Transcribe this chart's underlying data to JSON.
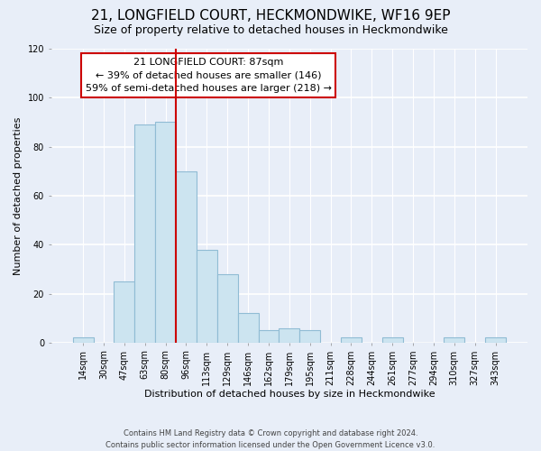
{
  "title": "21, LONGFIELD COURT, HECKMONDWIKE, WF16 9EP",
  "subtitle": "Size of property relative to detached houses in Heckmondwike",
  "xlabel": "Distribution of detached houses by size in Heckmondwike",
  "ylabel": "Number of detached properties",
  "footer_line1": "Contains HM Land Registry data © Crown copyright and database right 2024.",
  "footer_line2": "Contains public sector information licensed under the Open Government Licence v3.0.",
  "bin_labels": [
    "14sqm",
    "30sqm",
    "47sqm",
    "63sqm",
    "80sqm",
    "96sqm",
    "113sqm",
    "129sqm",
    "146sqm",
    "162sqm",
    "179sqm",
    "195sqm",
    "211sqm",
    "228sqm",
    "244sqm",
    "261sqm",
    "277sqm",
    "294sqm",
    "310sqm",
    "327sqm",
    "343sqm"
  ],
  "bin_values": [
    2,
    0,
    25,
    89,
    90,
    70,
    38,
    28,
    12,
    5,
    6,
    5,
    0,
    2,
    0,
    2,
    0,
    0,
    2,
    0,
    2
  ],
  "bar_color": "#cce4f0",
  "bar_edge_color": "#90bcd4",
  "vline_x_index": 4.5,
  "vline_color": "#cc0000",
  "annotation_title": "21 LONGFIELD COURT: 87sqm",
  "annotation_line1": "← 39% of detached houses are smaller (146)",
  "annotation_line2": "59% of semi-detached houses are larger (218) →",
  "annotation_box_color": "#ffffff",
  "annotation_box_edge_color": "#cc0000",
  "ylim": [
    0,
    120
  ],
  "yticks": [
    0,
    20,
    40,
    60,
    80,
    100,
    120
  ],
  "bg_color": "#e8eef8",
  "title_fontsize": 11,
  "subtitle_fontsize": 9,
  "annotation_fontsize": 8,
  "axis_label_fontsize": 8,
  "tick_fontsize": 7
}
